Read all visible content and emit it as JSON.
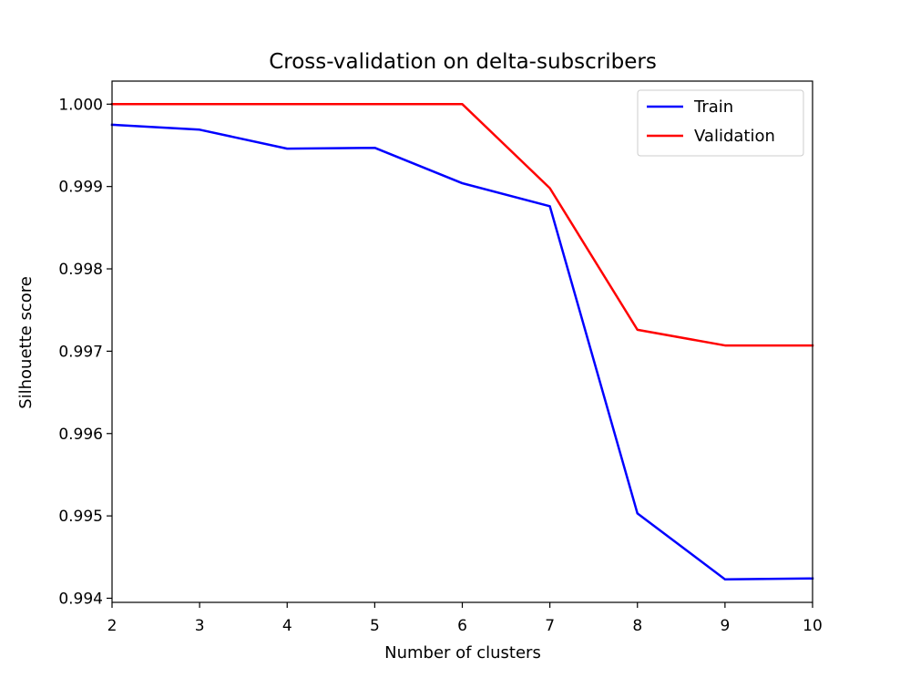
{
  "chart_data": {
    "type": "line",
    "title": "Cross-validation on delta-subscribers",
    "xlabel": "Number of clusters",
    "ylabel": "Silhouette score",
    "x": [
      2,
      3,
      4,
      5,
      6,
      7,
      8,
      9,
      10
    ],
    "xlim": [
      2,
      10
    ],
    "ylim": [
      0.99395,
      1.00028
    ],
    "xticks": [
      2,
      3,
      4,
      5,
      6,
      7,
      8,
      9,
      10
    ],
    "yticks": [
      0.994,
      0.995,
      0.996,
      0.997,
      0.998,
      0.999,
      1.0
    ],
    "ytick_labels": [
      "0.994",
      "0.995",
      "0.996",
      "0.997",
      "0.998",
      "0.999",
      "1.000"
    ],
    "grid": false,
    "legend_position": "top-right",
    "series": [
      {
        "name": "Train",
        "color": "#0000ff",
        "values": [
          0.99975,
          0.99969,
          0.99946,
          0.99947,
          0.99904,
          0.99876,
          0.99503,
          0.99423,
          0.99424
        ]
      },
      {
        "name": "Validation",
        "color": "#ff0000",
        "values": [
          1.0,
          1.0,
          1.0,
          1.0,
          1.0,
          0.99898,
          0.99726,
          0.99707,
          0.99707
        ]
      }
    ]
  }
}
